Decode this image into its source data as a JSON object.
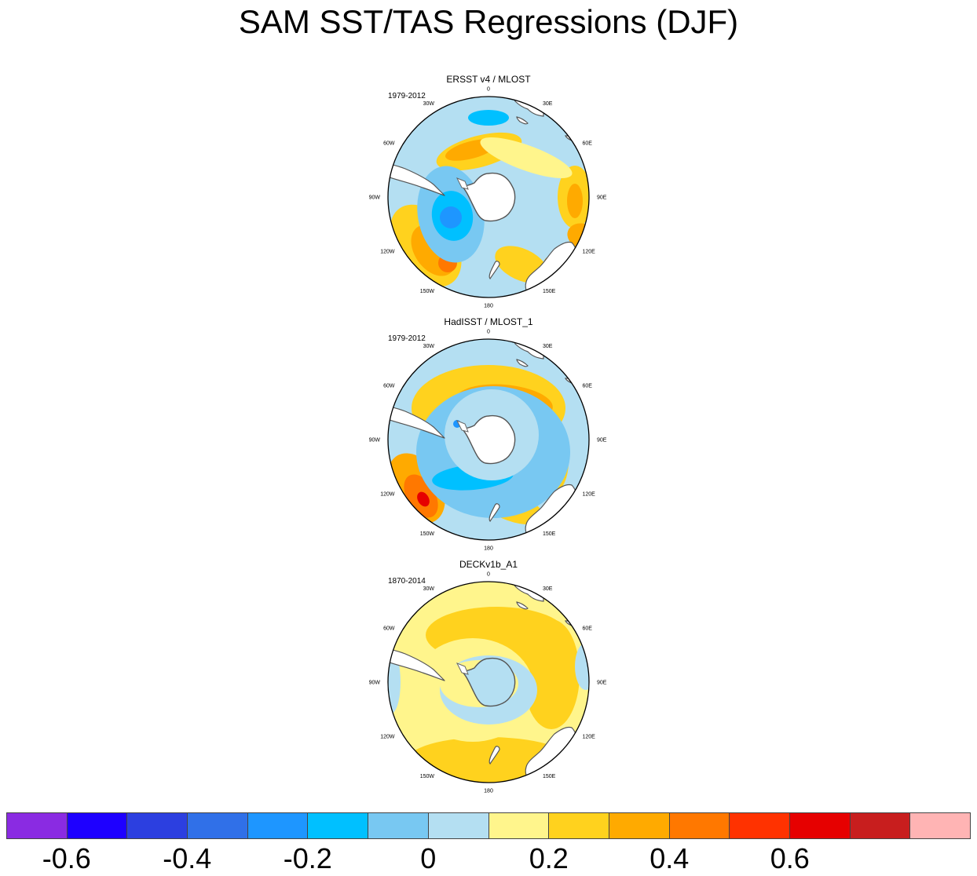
{
  "title": "SAM SST/TAS Regressions (DJF)",
  "panels": [
    {
      "title": "ERSST v4 / MLOST",
      "period": "1979-2012",
      "pattern": "ersst"
    },
    {
      "title": "HadISST / MLOST_1",
      "period": "1979-2012",
      "pattern": "hadisst"
    },
    {
      "title": "DECKv1b_A1",
      "period": "1870-2014",
      "pattern": "deck"
    }
  ],
  "longitude_labels": [
    "0",
    "30E",
    "60E",
    "90E",
    "120E",
    "150E",
    "180",
    "150W",
    "120W",
    "90W",
    "60W",
    "30W"
  ],
  "colorbar": {
    "colors": [
      "#8a2be2",
      "#1e00ff",
      "#2c3fe0",
      "#3070e8",
      "#1e96ff",
      "#00c0ff",
      "#78c8f2",
      "#b4dff2",
      "#fff58c",
      "#ffd21e",
      "#ffaa00",
      "#ff7800",
      "#ff3200",
      "#e60000",
      "#c81e1e",
      "#ffb4b4"
    ],
    "tick_labels": [
      "-0.6",
      "-0.4",
      "-0.2",
      "0",
      "0.2",
      "0.4",
      "0.6"
    ]
  }
}
